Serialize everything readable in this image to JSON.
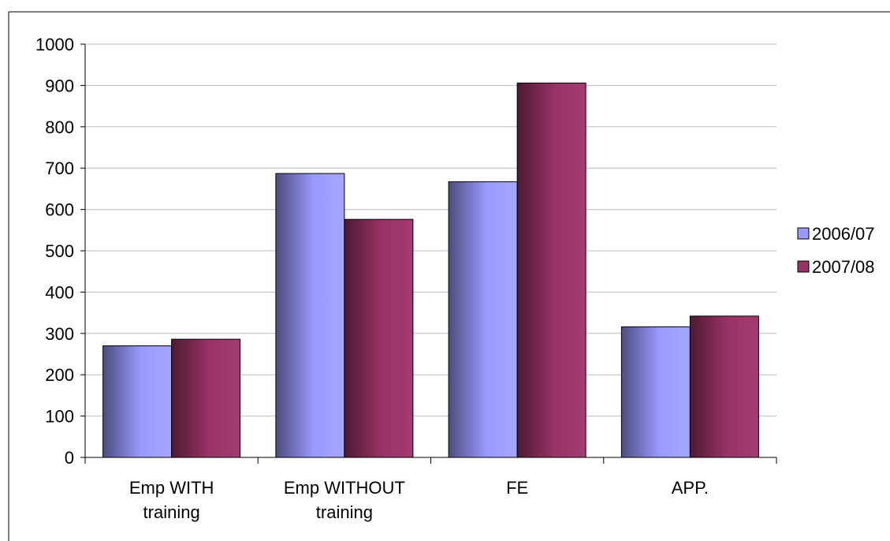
{
  "chart_data": {
    "type": "bar",
    "title": "",
    "xlabel": "",
    "ylabel": "",
    "ylim": [
      0,
      1000
    ],
    "yticks": [
      0,
      100,
      200,
      300,
      400,
      500,
      600,
      700,
      800,
      900,
      1000
    ],
    "grid": true,
    "legend_position": "right",
    "categories": [
      [
        "Emp WITH",
        "training"
      ],
      [
        "Emp WITHOUT",
        "training"
      ],
      [
        "FE"
      ],
      [
        "APP."
      ]
    ],
    "series": [
      {
        "name": "2006/07",
        "values": [
          270,
          687,
          667,
          316
        ],
        "color": "#9999ff"
      },
      {
        "name": "2007/08",
        "values": [
          286,
          576,
          906,
          342
        ],
        "color": "#993366"
      }
    ]
  }
}
